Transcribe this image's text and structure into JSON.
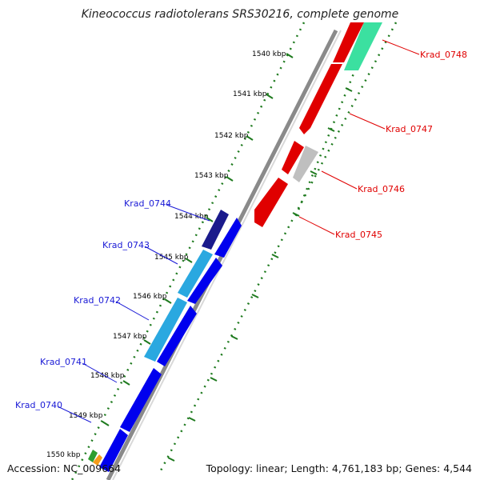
{
  "title": "Kineococcus radiotolerans SRS30216, complete genome",
  "accession": "Accession: NC_009664",
  "topology": "Topology: linear; Length: 4,761,183 bp; Genes: 4,544",
  "colors": {
    "backbone": "#8a8a8a",
    "tick_dots": "#1e7a1e",
    "right_label": "#e00000",
    "left_label": "#1a1ad6"
  },
  "kbp_ticks": [
    "1540 kbp",
    "1541 kbp",
    "1542 kbp",
    "1543 kbp",
    "1544 kbp",
    "1545 kbp",
    "1546 kbp",
    "1547 kbp",
    "1548 kbp",
    "1549 kbp",
    "1550 kbp"
  ],
  "genes_right": [
    {
      "name": "Krad_0748",
      "color": "#e00000"
    },
    {
      "name": "Krad_0747",
      "color": "#e00000"
    },
    {
      "name": "Krad_0746",
      "color": "#bfbfbf"
    },
    {
      "name": "Krad_0745",
      "color": "#e00000"
    }
  ],
  "genes_left": [
    {
      "name": "Krad_0744",
      "color": "#1a1a8c"
    },
    {
      "name": "Krad_0743",
      "color": "#2aa8e0"
    },
    {
      "name": "Krad_0742",
      "color": "#2aa8e0"
    },
    {
      "name": "Krad_0741",
      "color": "#0000ee"
    },
    {
      "name": "Krad_0740",
      "color": "#0000ee"
    }
  ]
}
